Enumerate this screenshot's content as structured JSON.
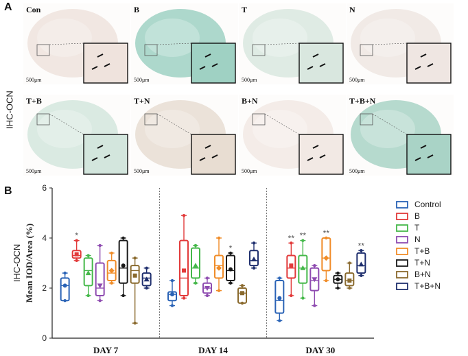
{
  "panel_a": {
    "letter": "A",
    "row_label": "IHC-OCN",
    "scale_label": "500μm",
    "tiles": [
      {
        "label": "Con",
        "tint": "#efe3dd"
      },
      {
        "label": "B",
        "tint": "#9fd1c3"
      },
      {
        "label": "T",
        "tint": "#d9e7df"
      },
      {
        "label": "N",
        "tint": "#efe6e2"
      },
      {
        "label": "T+B",
        "tint": "#d3e6dd"
      },
      {
        "label": "T+N",
        "tint": "#e8ddd2"
      },
      {
        "label": "B+N",
        "tint": "#f2e9e4"
      },
      {
        "label": "T+B+N",
        "tint": "#a9d3c6"
      }
    ]
  },
  "panel_b": {
    "letter": "B"
  },
  "chart_data": {
    "type": "box",
    "ylabel_top": "IHC-OCN",
    "ylabel_bottom": "Mean IOD/Area (%)",
    "ylim": [
      0,
      6
    ],
    "yticks": [
      0,
      2,
      4,
      6
    ],
    "days": [
      "DAY 7",
      "DAY 14",
      "DAY 30"
    ],
    "series": [
      {
        "name": "Control",
        "color": "#2a63b6",
        "marker": "circle",
        "boxes": [
          {
            "min": 1.5,
            "q1": 1.5,
            "median": 2.1,
            "q3": 2.4,
            "max": 2.6,
            "mean": 2.1,
            "sig": ""
          },
          {
            "min": 1.3,
            "q1": 1.5,
            "median": 1.75,
            "q3": 1.85,
            "max": 2.3,
            "mean": 1.75,
            "sig": ""
          },
          {
            "min": 0.7,
            "q1": 1.0,
            "median": 1.5,
            "q3": 2.3,
            "max": 2.4,
            "mean": 1.6,
            "sig": ""
          }
        ]
      },
      {
        "name": "B",
        "color": "#e23a3a",
        "marker": "square",
        "boxes": [
          {
            "min": 3.1,
            "q1": 3.2,
            "median": 3.3,
            "q3": 3.5,
            "max": 3.9,
            "mean": 3.35,
            "sig": "*"
          },
          {
            "min": 1.6,
            "q1": 1.7,
            "median": 2.4,
            "q3": 3.9,
            "max": 4.9,
            "mean": 2.7,
            "sig": ""
          },
          {
            "min": 1.7,
            "q1": 2.4,
            "median": 2.8,
            "q3": 3.3,
            "max": 3.8,
            "mean": 2.9,
            "sig": "**"
          }
        ]
      },
      {
        "name": "T",
        "color": "#45b84a",
        "marker": "triangle",
        "boxes": [
          {
            "min": 1.7,
            "q1": 2.1,
            "median": 2.7,
            "q3": 3.2,
            "max": 3.3,
            "mean": 2.6,
            "sig": ""
          },
          {
            "min": 2.2,
            "q1": 2.4,
            "median": 2.8,
            "q3": 3.6,
            "max": 3.7,
            "mean": 2.9,
            "sig": ""
          },
          {
            "min": 1.6,
            "q1": 2.2,
            "median": 2.8,
            "q3": 3.3,
            "max": 3.9,
            "mean": 2.8,
            "sig": "**"
          }
        ]
      },
      {
        "name": "N",
        "color": "#8e4bb0",
        "marker": "triangle-down",
        "boxes": [
          {
            "min": 1.5,
            "q1": 1.7,
            "median": 2.0,
            "q3": 3.0,
            "max": 3.7,
            "mean": 2.1,
            "sig": ""
          },
          {
            "min": 1.7,
            "q1": 1.8,
            "median": 2.0,
            "q3": 2.2,
            "max": 2.4,
            "mean": 2.0,
            "sig": ""
          },
          {
            "min": 1.3,
            "q1": 1.9,
            "median": 2.3,
            "q3": 2.8,
            "max": 2.9,
            "mean": 2.35,
            "sig": ""
          }
        ]
      },
      {
        "name": "T+B",
        "color": "#f08c28",
        "marker": "diamond",
        "boxes": [
          {
            "min": 2.2,
            "q1": 2.3,
            "median": 2.6,
            "q3": 3.1,
            "max": 3.4,
            "mean": 2.7,
            "sig": ""
          },
          {
            "min": 1.9,
            "q1": 2.4,
            "median": 2.9,
            "q3": 3.3,
            "max": 4.0,
            "mean": 2.8,
            "sig": ""
          },
          {
            "min": 2.3,
            "q1": 2.7,
            "median": 3.2,
            "q3": 4.0,
            "max": 4.0,
            "mean": 3.2,
            "sig": "**"
          }
        ]
      },
      {
        "name": "T+N",
        "color": "#1a1a1a",
        "marker": "circle",
        "boxes": [
          {
            "min": 1.7,
            "q1": 2.2,
            "median": 2.8,
            "q3": 3.9,
            "max": 4.0,
            "mean": 2.9,
            "sig": ""
          },
          {
            "min": 2.2,
            "q1": 2.3,
            "median": 2.7,
            "q3": 3.3,
            "max": 3.4,
            "mean": 2.75,
            "sig": "*"
          },
          {
            "min": 2.0,
            "q1": 2.2,
            "median": 2.35,
            "q3": 2.5,
            "max": 2.6,
            "mean": 2.35,
            "sig": ""
          }
        ]
      },
      {
        "name": "B+N",
        "color": "#8a6a2e",
        "marker": "square",
        "boxes": [
          {
            "min": 0.6,
            "q1": 2.2,
            "median": 2.7,
            "q3": 2.9,
            "max": 3.2,
            "mean": 2.5,
            "sig": ""
          },
          {
            "min": 1.4,
            "q1": 1.4,
            "median": 1.8,
            "q3": 2.0,
            "max": 2.1,
            "mean": 1.8,
            "sig": ""
          },
          {
            "min": 2.0,
            "q1": 2.1,
            "median": 2.3,
            "q3": 2.6,
            "max": 3.0,
            "mean": 2.3,
            "sig": ""
          }
        ]
      },
      {
        "name": "T+B+N",
        "color": "#1f2f6e",
        "marker": "triangle",
        "boxes": [
          {
            "min": 2.0,
            "q1": 2.1,
            "median": 2.4,
            "q3": 2.6,
            "max": 2.8,
            "mean": 2.35,
            "sig": ""
          },
          {
            "min": 2.8,
            "q1": 2.9,
            "median": 3.1,
            "q3": 3.5,
            "max": 3.8,
            "mean": 3.15,
            "sig": ""
          },
          {
            "min": 2.5,
            "q1": 2.6,
            "median": 2.9,
            "q3": 3.4,
            "max": 3.5,
            "mean": 2.95,
            "sig": "**"
          }
        ]
      }
    ]
  }
}
